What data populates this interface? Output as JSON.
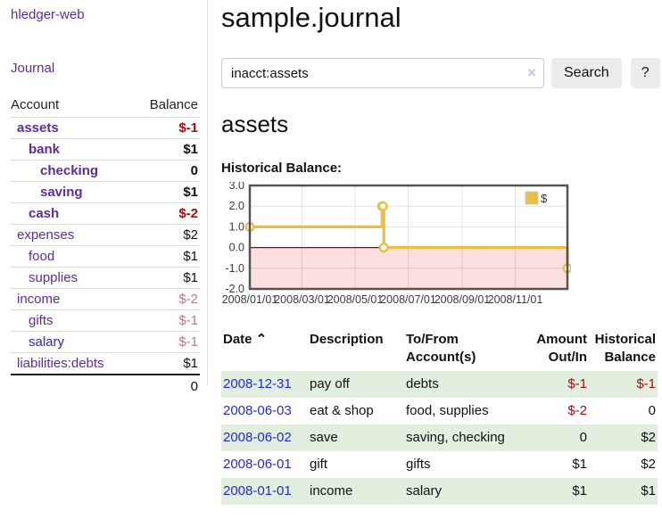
{
  "app": {
    "brand": "hledger-web",
    "nav_journal": "Journal"
  },
  "sidebar": {
    "header": {
      "account": "Account",
      "balance": "Balance"
    },
    "accounts": [
      {
        "name": "assets",
        "balance": "$-1",
        "depth": 1,
        "bold": true,
        "tone": "neg"
      },
      {
        "name": "bank",
        "balance": "$1",
        "depth": 2,
        "bold": true
      },
      {
        "name": "checking",
        "balance": "0",
        "depth": 3,
        "bold": true
      },
      {
        "name": "saving",
        "balance": "$1",
        "depth": 3,
        "bold": true
      },
      {
        "name": "cash",
        "balance": "$-2",
        "depth": 2,
        "bold": true,
        "tone": "neg"
      },
      {
        "name": "expenses",
        "balance": "$2",
        "depth": 1
      },
      {
        "name": "food",
        "balance": "$1",
        "depth": 2
      },
      {
        "name": "supplies",
        "balance": "$1",
        "depth": 2
      },
      {
        "name": "income",
        "balance": "$-2",
        "depth": 1,
        "tone": "negsoft"
      },
      {
        "name": "gifts",
        "balance": "$-1",
        "depth": 2,
        "tone": "negsoft"
      },
      {
        "name": "salary",
        "balance": "$-1",
        "depth": 2,
        "tone": "negsoft",
        "blue": true
      },
      {
        "name": "liabilities:debts",
        "balance": "$1",
        "depth": 1
      }
    ],
    "total": "0"
  },
  "header": {
    "title": "sample.journal"
  },
  "search": {
    "value": "inacct:assets",
    "clear_icon": "×",
    "button": "Search",
    "help_button": "?"
  },
  "account_page": {
    "title": "assets",
    "chart_label": "Historical Balance:"
  },
  "chart_data": {
    "type": "line",
    "step": true,
    "title": "Historical Balance",
    "series": [
      {
        "name": "$",
        "color": "#e9c041",
        "points": [
          [
            "2008-01-01",
            1
          ],
          [
            "2008-06-01",
            2
          ],
          [
            "2008-06-02",
            2
          ],
          [
            "2008-06-03",
            0
          ],
          [
            "2008-12-31",
            -1
          ]
        ]
      }
    ],
    "x_ticks": [
      [
        "2008-01-01",
        "2008/01/01"
      ],
      [
        "2008-03-01",
        "2008/03/01"
      ],
      [
        "2008-05-01",
        "2008/05/01"
      ],
      [
        "2008-07-01",
        "2008/07/01"
      ],
      [
        "2008-09-01",
        "2008/09/01"
      ],
      [
        "2008-11-01",
        "2008/11/01"
      ]
    ],
    "y_ticks": [
      3.0,
      2.0,
      1.0,
      0.0,
      -1.0,
      -2.0
    ],
    "ylim": [
      -2,
      3
    ],
    "x_range": [
      "2008-01-01",
      "2008-12-31"
    ],
    "grid": true,
    "negative_region": true,
    "legend": {
      "label": "$",
      "position": "top-right"
    }
  },
  "register": {
    "columns": [
      {
        "label": "Date",
        "sort_icon": "⌃"
      },
      {
        "label": "Description"
      },
      {
        "label": "To/From Account(s)"
      },
      {
        "label": "Amount Out/In",
        "align": "right"
      },
      {
        "label": "Historical Balance",
        "align": "right"
      }
    ],
    "rows": [
      {
        "date": "2008-12-31",
        "description": "pay off",
        "accounts": "debts",
        "amount": "$-1",
        "balance": "$-1"
      },
      {
        "date": "2008-06-03",
        "description": "eat & shop",
        "accounts": "food, supplies",
        "amount": "$-2",
        "balance": "0"
      },
      {
        "date": "2008-06-02",
        "description": "save",
        "accounts": "saving, checking",
        "amount": "0",
        "balance": "$2"
      },
      {
        "date": "2008-06-01",
        "description": "gift",
        "accounts": "gifts",
        "amount": "$1",
        "balance": "$2"
      },
      {
        "date": "2008-01-01",
        "description": "income",
        "accounts": "salary",
        "amount": "$1",
        "balance": "$1"
      }
    ]
  }
}
